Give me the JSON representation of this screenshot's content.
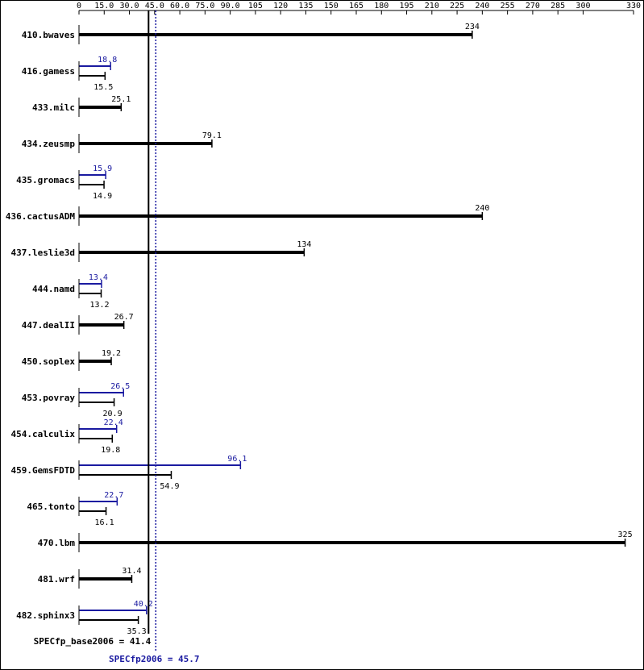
{
  "chart_data": {
    "type": "spec-bar",
    "xlim": [
      0,
      330
    ],
    "xticks": [
      0,
      {
        "value": 15,
        "label": "15.0"
      },
      {
        "value": 30,
        "label": "30.0"
      },
      {
        "value": 45,
        "label": "45.0"
      },
      {
        "value": 60,
        "label": "60.0"
      },
      {
        "value": 75,
        "label": "75.0"
      },
      {
        "value": 90,
        "label": "90.0"
      },
      105,
      120,
      135,
      150,
      165,
      180,
      195,
      210,
      225,
      240,
      255,
      270,
      285,
      300,
      330
    ],
    "base_color": "#000000",
    "peak_color": "#1a1aa0",
    "rows": [
      {
        "label": "410.bwaves",
        "value": 234
      },
      {
        "label": "416.gamess",
        "peak": 18.8,
        "base": 15.5
      },
      {
        "label": "433.milc",
        "value": 25.1
      },
      {
        "label": "434.zeusmp",
        "value": 79.1
      },
      {
        "label": "435.gromacs",
        "peak": 15.9,
        "base": 14.9
      },
      {
        "label": "436.cactusADM",
        "value": 240
      },
      {
        "label": "437.leslie3d",
        "value": 134
      },
      {
        "label": "444.namd",
        "peak": 13.4,
        "base": 13.2
      },
      {
        "label": "447.dealII",
        "value": 26.7
      },
      {
        "label": "450.soplex",
        "value": 19.2
      },
      {
        "label": "453.povray",
        "peak": 26.5,
        "base": 20.9
      },
      {
        "label": "454.calculix",
        "peak": 22.4,
        "base": 19.8
      },
      {
        "label": "459.GemsFDTD",
        "peak": 96.1,
        "base": 54.9
      },
      {
        "label": "465.tonto",
        "peak": 22.7,
        "base": 16.1
      },
      {
        "label": "470.lbm",
        "value": 325
      },
      {
        "label": "481.wrf",
        "value": 31.4
      },
      {
        "label": "482.sphinx3",
        "peak": 40.2,
        "base": 35.3
      }
    ],
    "base_mean": 41.4,
    "base_mean_label": "SPECfp_base2006 = 41.4",
    "peak_mean": 45.7,
    "peak_mean_label": "SPECfp2006 = 45.7"
  }
}
